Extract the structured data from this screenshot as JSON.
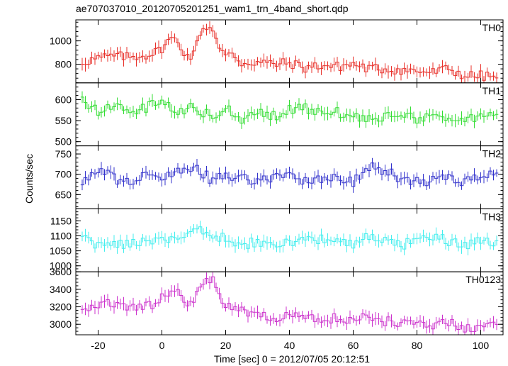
{
  "chart_data": {
    "type": "line",
    "title": "ae707037010_20120705201251_wam1_trn_4band_short.qdp",
    "xlabel": "Time [sec] 0 = 2012/07/05 20:12:51",
    "ylabel": "Counts/sec",
    "xlim": [
      -27,
      107
    ],
    "x_ticks": [
      -20,
      0,
      20,
      40,
      60,
      80,
      100
    ],
    "grid": false,
    "legend": "none",
    "step": 1.0,
    "x_start": -25,
    "panels": [
      {
        "label": "TH0",
        "color": "#e8302a",
        "ylim": [
          640,
          1180
        ],
        "y_ticks": [
          800,
          1000
        ],
        "keys": [
          [
            -25,
            820
          ],
          [
            -20,
            850
          ],
          [
            -15,
            870
          ],
          [
            -10,
            860
          ],
          [
            -5,
            880
          ],
          [
            -2,
            900
          ],
          [
            0,
            940
          ],
          [
            3,
            1020
          ],
          [
            5,
            990
          ],
          [
            8,
            870
          ],
          [
            10,
            880
          ],
          [
            12,
            1080
          ],
          [
            14,
            1120
          ],
          [
            16,
            1110
          ],
          [
            18,
            930
          ],
          [
            20,
            860
          ],
          [
            22,
            900
          ],
          [
            25,
            810
          ],
          [
            30,
            820
          ],
          [
            35,
            800
          ],
          [
            40,
            810
          ],
          [
            45,
            770
          ],
          [
            50,
            790
          ],
          [
            55,
            780
          ],
          [
            60,
            800
          ],
          [
            65,
            760
          ],
          [
            70,
            760
          ],
          [
            75,
            750
          ],
          [
            80,
            740
          ],
          [
            85,
            730
          ],
          [
            90,
            760
          ],
          [
            95,
            700
          ],
          [
            100,
            700
          ],
          [
            105,
            690
          ]
        ],
        "values": []
      },
      {
        "label": "TH1",
        "color": "#33dd33",
        "ylim": [
          490,
          640
        ],
        "y_ticks": [
          500,
          550,
          600
        ],
        "keys": [
          [
            -25,
            600
          ],
          [
            -20,
            575
          ],
          [
            -15,
            590
          ],
          [
            -10,
            570
          ],
          [
            -5,
            580
          ],
          [
            0,
            605
          ],
          [
            5,
            565
          ],
          [
            10,
            585
          ],
          [
            15,
            560
          ],
          [
            20,
            580
          ],
          [
            25,
            555
          ],
          [
            30,
            575
          ],
          [
            35,
            560
          ],
          [
            40,
            575
          ],
          [
            45,
            580
          ],
          [
            50,
            565
          ],
          [
            55,
            570
          ],
          [
            60,
            560
          ],
          [
            65,
            555
          ],
          [
            70,
            560
          ],
          [
            75,
            570
          ],
          [
            80,
            550
          ],
          [
            85,
            560
          ],
          [
            90,
            560
          ],
          [
            95,
            550
          ],
          [
            100,
            560
          ],
          [
            105,
            565
          ]
        ],
        "values": []
      },
      {
        "label": "TH2",
        "color": "#3333cc",
        "ylim": [
          615,
          770
        ],
        "y_ticks": [
          650,
          700,
          750
        ],
        "keys": [
          [
            -25,
            680
          ],
          [
            -20,
            715
          ],
          [
            -15,
            690
          ],
          [
            -10,
            680
          ],
          [
            -5,
            695
          ],
          [
            0,
            690
          ],
          [
            5,
            710
          ],
          [
            10,
            720
          ],
          [
            15,
            690
          ],
          [
            20,
            695
          ],
          [
            25,
            690
          ],
          [
            30,
            685
          ],
          [
            35,
            690
          ],
          [
            40,
            695
          ],
          [
            45,
            680
          ],
          [
            50,
            685
          ],
          [
            55,
            690
          ],
          [
            60,
            680
          ],
          [
            65,
            720
          ],
          [
            70,
            710
          ],
          [
            75,
            690
          ],
          [
            80,
            680
          ],
          [
            85,
            685
          ],
          [
            90,
            690
          ],
          [
            95,
            680
          ],
          [
            100,
            690
          ],
          [
            105,
            700
          ]
        ],
        "values": []
      },
      {
        "label": "TH3",
        "color": "#44eeee",
        "ylim": [
          980,
          1190
        ],
        "y_ticks": [
          1000,
          1050,
          1100,
          1150
        ],
        "keys": [
          [
            -25,
            1090
          ],
          [
            -20,
            1070
          ],
          [
            -15,
            1080
          ],
          [
            -10,
            1070
          ],
          [
            -5,
            1080
          ],
          [
            0,
            1090
          ],
          [
            5,
            1100
          ],
          [
            10,
            1120
          ],
          [
            15,
            1110
          ],
          [
            20,
            1090
          ],
          [
            25,
            1070
          ],
          [
            30,
            1080
          ],
          [
            35,
            1070
          ],
          [
            40,
            1075
          ],
          [
            45,
            1080
          ],
          [
            50,
            1090
          ],
          [
            55,
            1100
          ],
          [
            60,
            1070
          ],
          [
            65,
            1100
          ],
          [
            70,
            1080
          ],
          [
            75,
            1070
          ],
          [
            80,
            1080
          ],
          [
            85,
            1100
          ],
          [
            90,
            1080
          ],
          [
            95,
            1070
          ],
          [
            100,
            1080
          ],
          [
            105,
            1070
          ]
        ],
        "values": []
      },
      {
        "label": "TH0123",
        "color": "#cc33cc",
        "ylim": [
          2880,
          3600
        ],
        "y_ticks": [
          3000,
          3200,
          3400,
          3600
        ],
        "keys": [
          [
            -25,
            3200
          ],
          [
            -20,
            3230
          ],
          [
            -15,
            3250
          ],
          [
            -10,
            3210
          ],
          [
            -5,
            3200
          ],
          [
            -2,
            3230
          ],
          [
            0,
            3330
          ],
          [
            3,
            3400
          ],
          [
            5,
            3370
          ],
          [
            8,
            3260
          ],
          [
            10,
            3250
          ],
          [
            12,
            3450
          ],
          [
            14,
            3520
          ],
          [
            16,
            3540
          ],
          [
            18,
            3300
          ],
          [
            20,
            3200
          ],
          [
            25,
            3150
          ],
          [
            30,
            3100
          ],
          [
            35,
            3080
          ],
          [
            40,
            3090
          ],
          [
            45,
            3080
          ],
          [
            50,
            3060
          ],
          [
            55,
            3070
          ],
          [
            60,
            3050
          ],
          [
            65,
            3100
          ],
          [
            70,
            3040
          ],
          [
            75,
            3020
          ],
          [
            80,
            3010
          ],
          [
            85,
            3000
          ],
          [
            90,
            3030
          ],
          [
            95,
            2960
          ],
          [
            100,
            2980
          ],
          [
            105,
            2990
          ]
        ],
        "values": []
      }
    ]
  }
}
